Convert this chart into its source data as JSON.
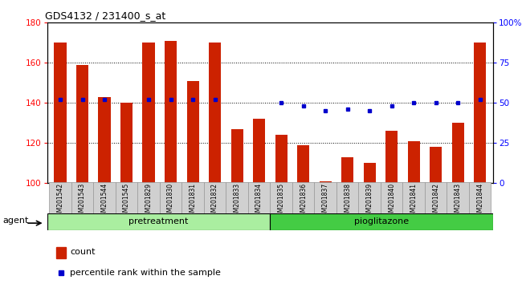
{
  "title": "GDS4132 / 231400_s_at",
  "samples": [
    "GSM201542",
    "GSM201543",
    "GSM201544",
    "GSM201545",
    "GSM201829",
    "GSM201830",
    "GSM201831",
    "GSM201832",
    "GSM201833",
    "GSM201834",
    "GSM201835",
    "GSM201836",
    "GSM201837",
    "GSM201838",
    "GSM201839",
    "GSM201840",
    "GSM201841",
    "GSM201842",
    "GSM201843",
    "GSM201844"
  ],
  "counts": [
    170,
    159,
    143,
    140,
    170,
    171,
    151,
    170,
    127,
    132,
    124,
    119,
    101,
    113,
    110,
    126,
    121,
    118,
    130,
    170
  ],
  "percentiles": [
    52,
    52,
    52,
    null,
    52,
    52,
    52,
    52,
    null,
    null,
    50,
    48,
    45,
    46,
    45,
    48,
    50,
    50,
    50,
    52
  ],
  "pretreatment_count": 10,
  "pioglitazone_count": 10,
  "bar_color": "#cc2200",
  "dot_color": "#0000cc",
  "ylim_left": [
    100,
    180
  ],
  "ylim_right": [
    0,
    100
  ],
  "yticks_left": [
    100,
    120,
    140,
    160,
    180
  ],
  "yticks_right": [
    0,
    25,
    50,
    75,
    100
  ],
  "pretreatment_color": "#aaeea0",
  "pioglitazone_color": "#44cc44",
  "agent_label": "agent",
  "pretreatment_label": "pretreatment",
  "pioglitazone_label": "pioglitazone",
  "xtick_bg": "#d0d0d0"
}
